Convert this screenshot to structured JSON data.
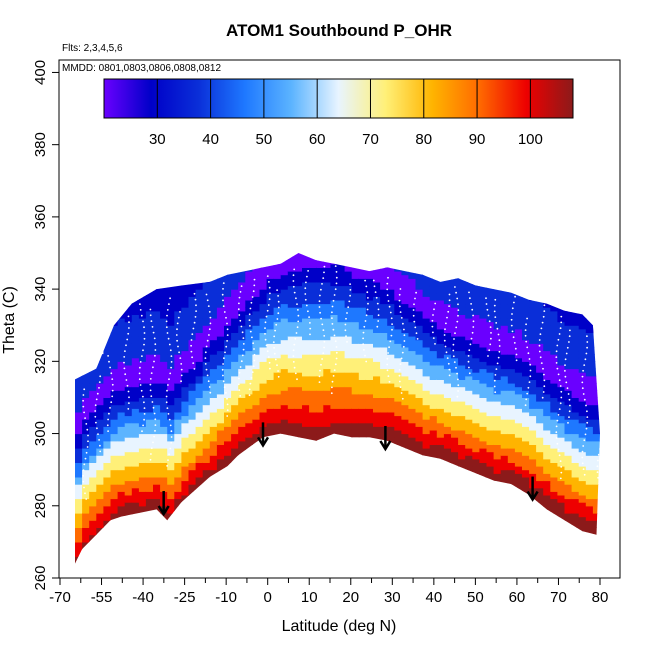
{
  "chart_data": {
    "type": "heatmap",
    "title": "ATOM1 Southbound P_OHR",
    "annotations": {
      "flights": "Flts: 2,3,4,5,6",
      "dates": "MMDD: 0801,0803,0806,0808,0812"
    },
    "xlabel": "Latitude (deg N)",
    "ylabel": "Theta (C)",
    "xlim": [
      -70,
      82
    ],
    "ylim": [
      260,
      403
    ],
    "x_ticks": [
      {
        "label": "-70",
        "lat": -70
      },
      {
        "label": "-55",
        "lat": -55
      },
      {
        "label": "-40",
        "lat": -40
      },
      {
        "label": "-25",
        "lat": -25
      },
      {
        "label": "-10",
        "lat": -10
      },
      {
        "label": "0",
        "lat": 0
      },
      {
        "label": "10",
        "lat": 10
      },
      {
        "label": "20",
        "lat": 20
      },
      {
        "label": "30",
        "lat": 30
      },
      {
        "label": "40",
        "lat": 40
      },
      {
        "label": "50",
        "lat": 50
      },
      {
        "label": "60",
        "lat": 60
      },
      {
        "label": "70",
        "lat": 70
      },
      {
        "label": "80",
        "lat": 80
      }
    ],
    "y_ticks": [
      260,
      280,
      300,
      320,
      340,
      360,
      380,
      400
    ],
    "colorbar": {
      "range": [
        20,
        108
      ],
      "ticks": [
        30,
        40,
        50,
        60,
        70,
        80,
        90,
        100
      ],
      "colors": [
        "#6a00ff",
        "#0000c8",
        "#0a2ed8",
        "#1e78ff",
        "#5cb4ff",
        "#e8f4ff",
        "#fff078",
        "#ffb400",
        "#ff6a00",
        "#ee0000",
        "#8c1a1a"
      ]
    },
    "top_boundary": {
      "lat": [
        -68,
        -62,
        -57,
        -52,
        -45,
        -38,
        -30,
        -25,
        -20,
        -15,
        -10,
        -5,
        0,
        5,
        10,
        15,
        20,
        25,
        30,
        35,
        40,
        45,
        50,
        55,
        60,
        65,
        70,
        75,
        78,
        80
      ],
      "theta": [
        315,
        318,
        330,
        336,
        340,
        341,
        342,
        344,
        345,
        346,
        347,
        350,
        348,
        347,
        346,
        345,
        346,
        345,
        344,
        342,
        343,
        341,
        340,
        339,
        337,
        336,
        334,
        333,
        330,
        300
      ]
    },
    "bottom_boundary": {
      "lat": [
        -68,
        -66,
        -62,
        -58,
        -55,
        -50,
        -45,
        -42,
        -38,
        -30,
        -25,
        -22,
        -15,
        -10,
        -5,
        0,
        5,
        10,
        15,
        20,
        25,
        30,
        35,
        40,
        45,
        50,
        55,
        60,
        65,
        70,
        75,
        79
      ],
      "theta": [
        264,
        268,
        272,
        276,
        277,
        278,
        279,
        276,
        281,
        288,
        291,
        294,
        299,
        300,
        299,
        298,
        300,
        299,
        299,
        298,
        296,
        294,
        293,
        291,
        289,
        287,
        286,
        283,
        279,
        276,
        273,
        272
      ]
    },
    "tropopause_marks": [
      {
        "lat": -43,
        "theta": 278
      },
      {
        "lat": -15,
        "theta": 297
      },
      {
        "lat": 19.5,
        "theta": 296
      },
      {
        "lat": 61,
        "theta": 282
      }
    ]
  }
}
